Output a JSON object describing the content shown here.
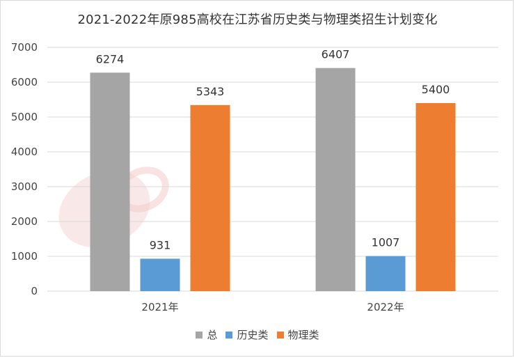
{
  "chart_data": {
    "type": "bar",
    "title": "2021-2022年原985高校在江苏省历史类与物理类招生计划变化",
    "categories": [
      "2021年",
      "2022年"
    ],
    "series": [
      {
        "name": "总",
        "values": [
          6274,
          6407
        ],
        "color": "#a5a5a5"
      },
      {
        "name": "历史类",
        "values": [
          931,
          1007
        ],
        "color": "#5b9bd5"
      },
      {
        "name": "物理类",
        "values": [
          5343,
          5400
        ],
        "color": "#ed7d31"
      }
    ],
    "ylim": [
      0,
      7000
    ],
    "yticks": [
      0,
      1000,
      2000,
      3000,
      4000,
      5000,
      6000,
      7000
    ],
    "grid": true,
    "legend_position": "bottom",
    "data_labels": true
  }
}
